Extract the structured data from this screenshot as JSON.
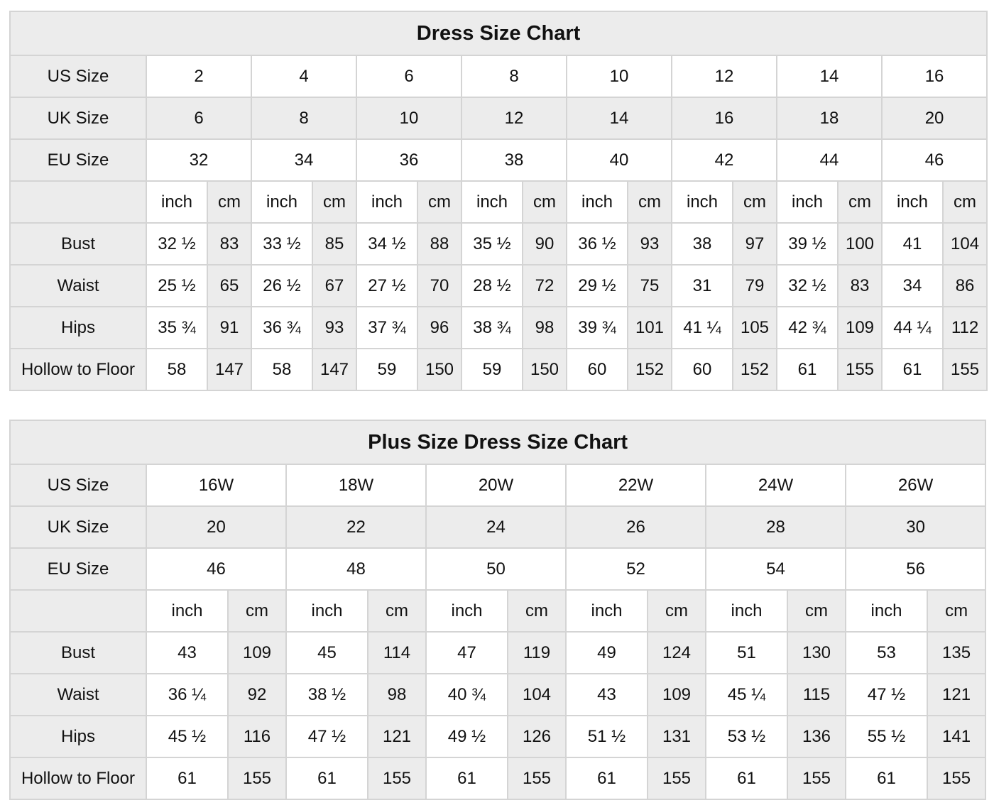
{
  "colors": {
    "page_background": "#ffffff",
    "shaded_cell_background": "#ececec",
    "cell_background": "#ffffff",
    "border": "#d4d4d4",
    "text": "#111111"
  },
  "chart_data": [
    {
      "type": "table",
      "title": "Dress Size Chart",
      "unit_labels": [
        "inch",
        "cm"
      ],
      "size_rows": [
        {
          "label": "US Size",
          "values": [
            "2",
            "4",
            "6",
            "8",
            "10",
            "12",
            "14",
            "16"
          ]
        },
        {
          "label": "UK Size",
          "values": [
            "6",
            "8",
            "10",
            "12",
            "14",
            "16",
            "18",
            "20"
          ]
        },
        {
          "label": "EU Size",
          "values": [
            "32",
            "34",
            "36",
            "38",
            "40",
            "42",
            "44",
            "46"
          ]
        }
      ],
      "measurement_rows": [
        {
          "label": "Bust",
          "inch": [
            "32 ½",
            "33 ½",
            "34 ½",
            "35 ½",
            "36 ½",
            "38",
            "39 ½",
            "41"
          ],
          "cm": [
            "83",
            "85",
            "88",
            "90",
            "93",
            "97",
            "100",
            "104"
          ]
        },
        {
          "label": "Waist",
          "inch": [
            "25 ½",
            "26 ½",
            "27 ½",
            "28 ½",
            "29 ½",
            "31",
            "32 ½",
            "34"
          ],
          "cm": [
            "65",
            "67",
            "70",
            "72",
            "75",
            "79",
            "83",
            "86"
          ]
        },
        {
          "label": "Hips",
          "inch": [
            "35 ¾",
            "36 ¾",
            "37 ¾",
            "38 ¾",
            "39 ¾",
            "41 ¼",
            "42 ¾",
            "44 ¼"
          ],
          "cm": [
            "91",
            "93",
            "96",
            "98",
            "101",
            "105",
            "109",
            "112"
          ]
        },
        {
          "label": "Hollow to Floor",
          "inch": [
            "58",
            "58",
            "59",
            "59",
            "60",
            "60",
            "61",
            "61"
          ],
          "cm": [
            "147",
            "147",
            "150",
            "150",
            "152",
            "152",
            "155",
            "155"
          ]
        }
      ]
    },
    {
      "type": "table",
      "title": "Plus Size Dress Size Chart",
      "unit_labels": [
        "inch",
        "cm"
      ],
      "size_rows": [
        {
          "label": "US Size",
          "values": [
            "16W",
            "18W",
            "20W",
            "22W",
            "24W",
            "26W"
          ]
        },
        {
          "label": "UK Size",
          "values": [
            "20",
            "22",
            "24",
            "26",
            "28",
            "30"
          ]
        },
        {
          "label": "EU Size",
          "values": [
            "46",
            "48",
            "50",
            "52",
            "54",
            "56"
          ]
        }
      ],
      "measurement_rows": [
        {
          "label": "Bust",
          "inch": [
            "43",
            "45",
            "47",
            "49",
            "51",
            "53"
          ],
          "cm": [
            "109",
            "114",
            "119",
            "124",
            "130",
            "135"
          ]
        },
        {
          "label": "Waist",
          "inch": [
            "36 ¼",
            "38 ½",
            "40 ¾",
            "43",
            "45 ¼",
            "47 ½"
          ],
          "cm": [
            "92",
            "98",
            "104",
            "109",
            "115",
            "121"
          ]
        },
        {
          "label": "Hips",
          "inch": [
            "45 ½",
            "47 ½",
            "49 ½",
            "51 ½",
            "53 ½",
            "55 ½"
          ],
          "cm": [
            "116",
            "121",
            "126",
            "131",
            "136",
            "141"
          ]
        },
        {
          "label": "Hollow to Floor",
          "inch": [
            "61",
            "61",
            "61",
            "61",
            "61",
            "61"
          ],
          "cm": [
            "155",
            "155",
            "155",
            "155",
            "155",
            "155"
          ]
        }
      ]
    }
  ]
}
